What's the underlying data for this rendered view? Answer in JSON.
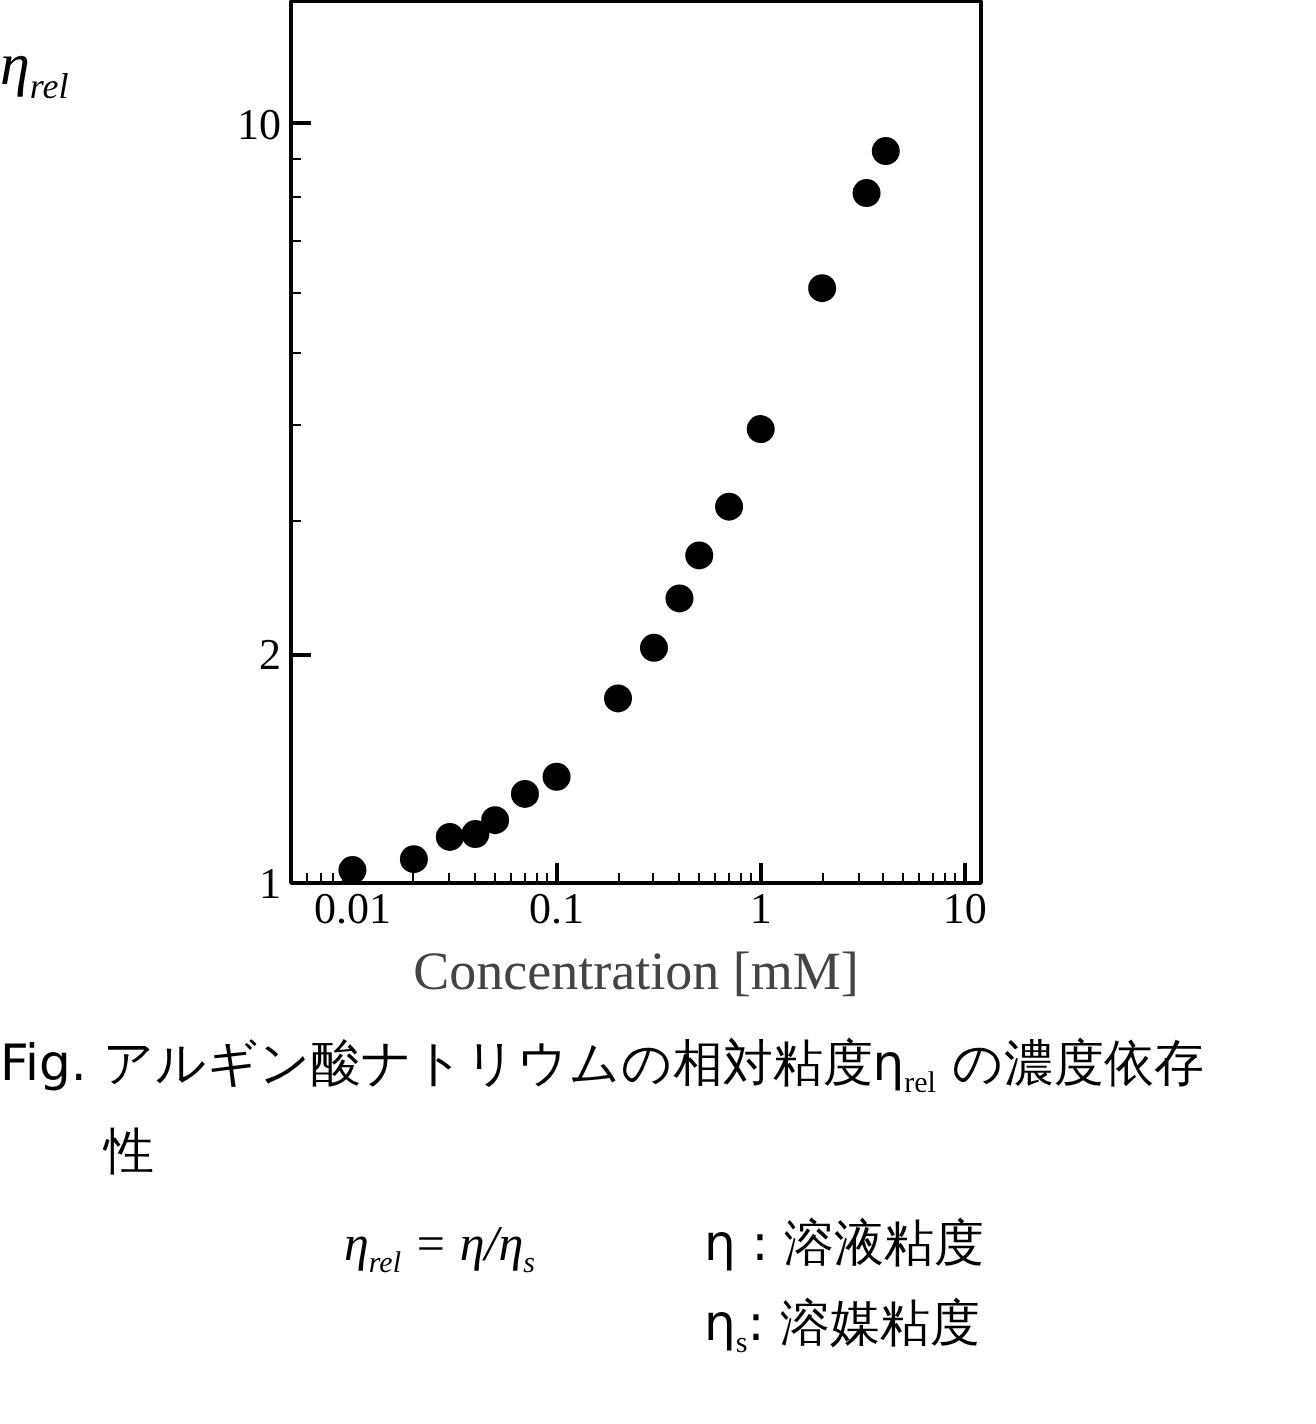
{
  "chart_data": {
    "type": "scatter",
    "xlabel": "Concentration [mM]",
    "ylabel": "η$_{rel}$",
    "log": "xy",
    "grid": false,
    "marker": "circle",
    "xlim": [
      0.005,
      12
    ],
    "ylim": [
      1,
      14.5
    ],
    "xticks": [
      {
        "value": 0.005,
        "label": null
      },
      {
        "value": 0.006,
        "label": null
      },
      {
        "value": 0.007,
        "label": null
      },
      {
        "value": 0.008,
        "label": null
      },
      {
        "value": 0.009,
        "label": null
      },
      0.01,
      {
        "value": 0.02,
        "label": null
      },
      {
        "value": 0.03,
        "label": null
      },
      {
        "value": 0.04,
        "label": null
      },
      {
        "value": 0.05,
        "label": null
      },
      {
        "value": 0.06,
        "label": null
      },
      {
        "value": 0.07,
        "label": null
      },
      {
        "value": 0.08,
        "label": null
      },
      {
        "value": 0.09,
        "label": null
      },
      0.1,
      {
        "value": 0.2,
        "label": null
      },
      {
        "value": 0.3,
        "label": null
      },
      {
        "value": 0.4,
        "label": null
      },
      {
        "value": 0.5,
        "label": null
      },
      {
        "value": 0.6,
        "label": null
      },
      {
        "value": 0.7,
        "label": null
      },
      {
        "value": 0.8,
        "label": null
      },
      {
        "value": 0.9,
        "label": null
      },
      1,
      {
        "value": 2,
        "label": null
      },
      {
        "value": 3,
        "label": null
      },
      {
        "value": 4,
        "label": null
      },
      {
        "value": 5,
        "label": null
      },
      {
        "value": 6,
        "label": null
      },
      {
        "value": 7,
        "label": null
      },
      {
        "value": 8,
        "label": null
      },
      {
        "value": 9,
        "label": null
      },
      10
    ],
    "yticks": [
      1,
      2,
      {
        "value": 3,
        "label": null
      },
      {
        "value": 4,
        "label": null
      },
      {
        "value": 5,
        "label": null
      },
      {
        "value": 6,
        "label": null
      },
      {
        "value": 7,
        "label": null
      },
      {
        "value": 8,
        "label": null
      },
      {
        "value": 9,
        "label": null
      },
      10
    ],
    "series": [
      {
        "color": "#000000",
        "x": [
          0.01,
          0.02,
          0.03,
          0.04,
          0.05,
          0.07,
          0.1,
          0.2,
          0.3,
          0.4,
          0.5,
          0.7,
          1,
          2,
          3.3,
          4.1
        ],
        "values": [
          1.04,
          1.075,
          1.15,
          1.16,
          1.21,
          1.31,
          1.38,
          1.75,
          2.04,
          2.37,
          2.7,
          3.13,
          3.96,
          6.07,
          8.1,
          9.2
        ]
      }
    ],
    "annotations": [
      "Fig. アルギン酸ナトリウムの相対粘度η$_{rel}$ の濃度依存性",
      "η$_{rel}$ = η/η$_{s}$",
      "η : 溶液粘度",
      "η$_{s}$: 溶媒粘度"
    ]
  }
}
